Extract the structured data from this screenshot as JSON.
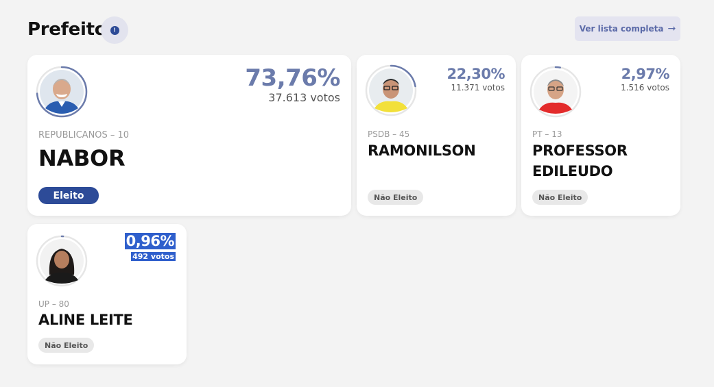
{
  "header": {
    "title": "Prefeito",
    "info_icon": "info-icon",
    "list_button_label": "Ver lista completa",
    "list_button_icon": "arrow-right-icon"
  },
  "candidates": [
    {
      "name": "NABOR",
      "party": "REPUBLICANOS – 10",
      "percent": "73,76%",
      "votes": "37.613 votos",
      "percent_value": 73.76,
      "status": "Eleito",
      "elected": true
    },
    {
      "name": "RAMONILSON",
      "party": "PSDB – 45",
      "percent": "22,30%",
      "votes": "11.371 votos",
      "percent_value": 22.3,
      "status": "Não Eleito",
      "elected": false
    },
    {
      "name_line1": "PROFESSOR",
      "name_line2": "EDILEUDO",
      "party": "PT – 13",
      "percent": "2,97%",
      "votes": "1.516 votos",
      "percent_value": 2.97,
      "status": "Não Eleito",
      "elected": false
    },
    {
      "name": "ALINE LEITE",
      "party": "UP – 80",
      "percent": "0,96%",
      "votes": "492 votos",
      "percent_value": 0.96,
      "status": "Não Eleito",
      "elected": false
    }
  ],
  "colors": {
    "accent": "#2d4b98",
    "percent_text": "#6b7bab",
    "ring": "#6b7bab",
    "highlight": "#2f5fcc"
  }
}
